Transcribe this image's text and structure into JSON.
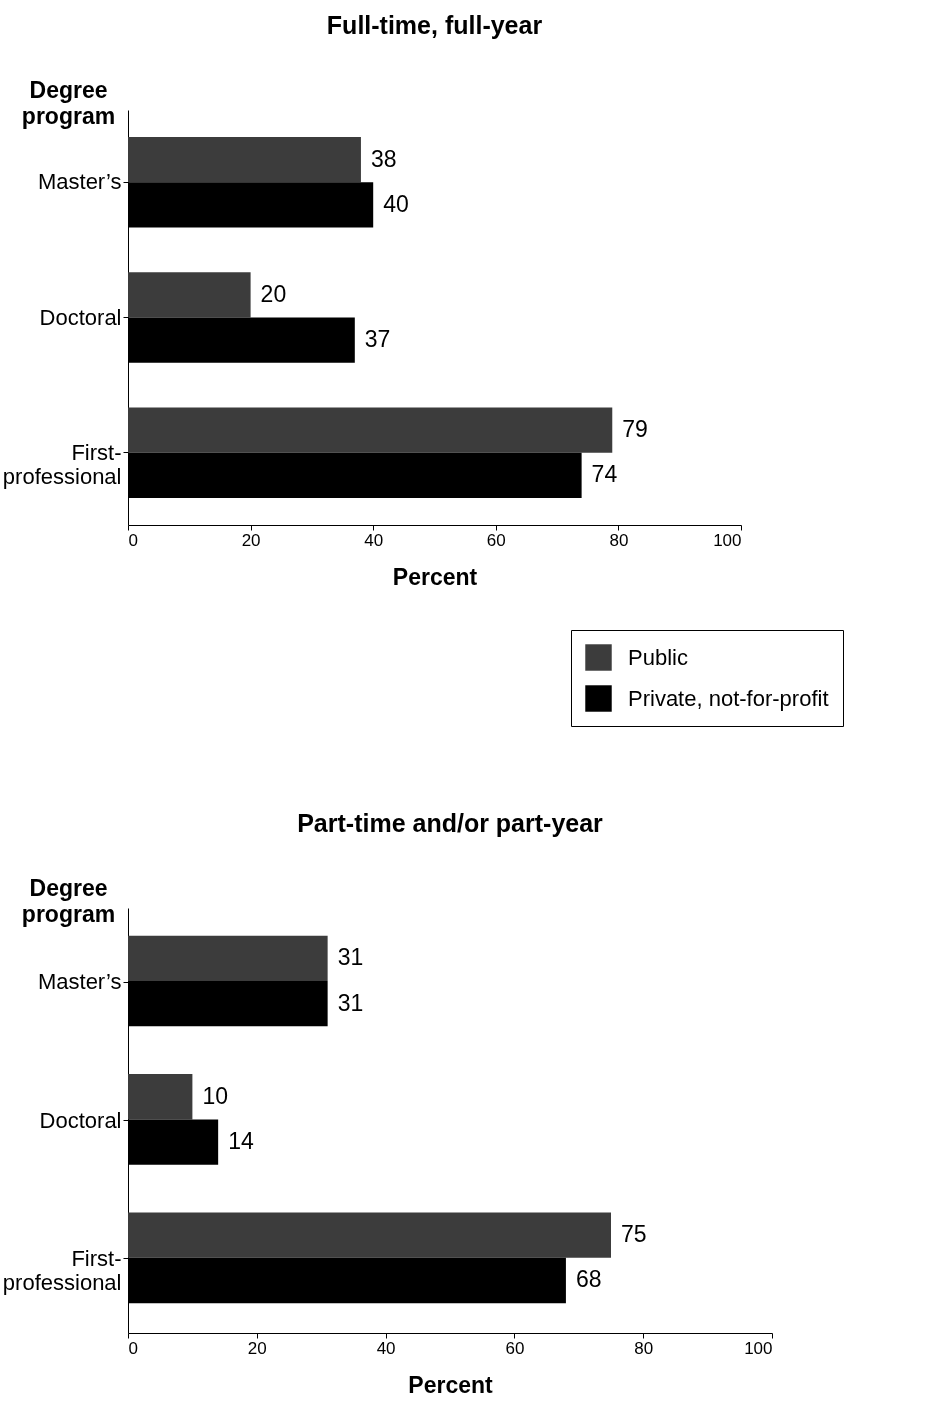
{
  "chart_data": [
    {
      "type": "bar",
      "orientation": "horizontal",
      "title": "Full-time, full-year",
      "xlabel": "Percent",
      "ylabel": "Degree program",
      "categories": [
        "Master’s",
        "Doctoral",
        "First-professional"
      ],
      "series": [
        {
          "name": "Public",
          "color": "#3c3c3c",
          "values": [
            38,
            20,
            79
          ]
        },
        {
          "name": "Private, not-for-profit",
          "color": "#000000",
          "values": [
            40,
            37,
            74
          ]
        }
      ],
      "xlim": [
        0,
        100
      ],
      "xticks": [
        0,
        20,
        40,
        60,
        80,
        100
      ],
      "data_labels": true,
      "legend": "bottom right"
    },
    {
      "type": "bar",
      "orientation": "horizontal",
      "title": "Part-time and/or part-year",
      "xlabel": "Percent",
      "ylabel": "Degree program",
      "categories": [
        "Master’s",
        "Doctoral",
        "First-professional"
      ],
      "series": [
        {
          "color": "#3c3c3c",
          "values": [
            31,
            10,
            75
          ]
        },
        {
          "color": "#000000",
          "values": [
            31,
            14,
            68
          ]
        }
      ],
      "xlim": [
        0,
        100
      ],
      "xticks": [
        0,
        20,
        40,
        60,
        80,
        100
      ],
      "data_labels": true
    }
  ]
}
